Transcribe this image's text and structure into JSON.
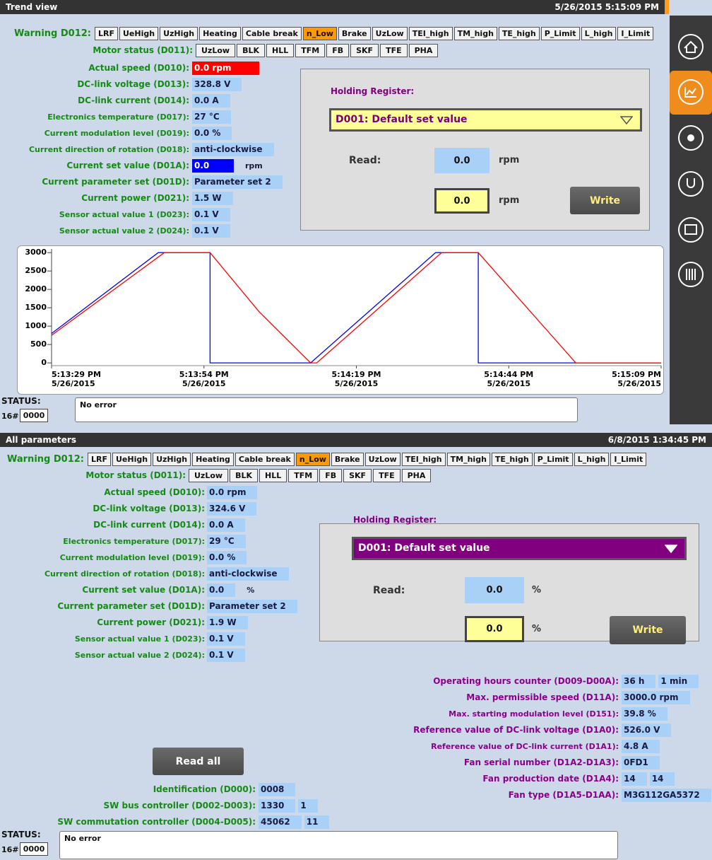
{
  "top": {
    "title": "Trend view",
    "datetime": "5/26/2015 5:15:09 PM",
    "warning": {
      "label": "Warning D012:",
      "flags": [
        "LRF",
        "UeHigh",
        "UzHigh",
        "Heating",
        "Cable break",
        "n_Low",
        "Brake",
        "UzLow",
        "TEI_high",
        "TM_high",
        "TE_high",
        "P_Limit",
        "L_high",
        "I_Limit"
      ],
      "highlight": 5
    },
    "motor_status": {
      "label": "Motor status (D011):",
      "flags": [
        "UzLow",
        "BLK",
        "HLL",
        "TFM",
        "FB",
        "SKF",
        "TFE",
        "PHA"
      ]
    },
    "params": [
      {
        "label": "Actual speed (D010):",
        "value": "0.0 rpm",
        "color": "#ff0000"
      },
      {
        "label": "DC-link voltage (D013):",
        "value": "328.8 V"
      },
      {
        "label": "DC-link current (D014):",
        "value": "0.0 A"
      },
      {
        "label": "Electronics temperature (D017):",
        "value": "27 °C"
      },
      {
        "label": "Current modulation level (D019):",
        "value": "0.0 %"
      },
      {
        "label": "Current direction of rotation (D018):",
        "value": "anti-clockwise"
      },
      {
        "label": "Current set value (D01A):",
        "value": "0.0",
        "unit": "rpm",
        "color": "#0000ff"
      },
      {
        "label": "Current parameter set (D01D):",
        "value": "Parameter set 2"
      },
      {
        "label": "Current power (D021):",
        "value": "1.5 W"
      },
      {
        "label": "Sensor actual value 1 (D023):",
        "value": "0.1 V"
      },
      {
        "label": "Sensor actual value 2 (D024):",
        "value": "0.1 V"
      }
    ],
    "holding": {
      "title": "Holding Register:",
      "selected": "D001: Default set value",
      "dropdown_color": "#ffff99",
      "dropdown_text_color": "#7a007a",
      "read_label": "Read:",
      "read_value": "0.0",
      "read_unit": "rpm",
      "write_value": "0.0",
      "write_unit": "rpm",
      "write_button": "Write"
    },
    "trend": {
      "xlim": [
        0,
        100
      ],
      "ylim": [
        -75,
        3100
      ],
      "yticks": [
        0,
        500,
        1000,
        1500,
        2000,
        2500,
        3000
      ],
      "xticks": [
        {
          "value": 0,
          "time": "5:13:29 PM",
          "date": "5/26/2015"
        },
        {
          "value": 25,
          "time": "5:13:54 PM",
          "date": "5/26/2015"
        },
        {
          "value": 50,
          "time": "5:14:19 PM",
          "date": "5/26/2015"
        },
        {
          "value": 75,
          "time": "5:14:44 PM",
          "date": "5/26/2015"
        },
        {
          "value": 100,
          "time": "5:15:09 PM",
          "date": "5/26/2015"
        }
      ],
      "series": [
        {
          "color": "#0000ff",
          "x": [
            0,
            17.5,
            26,
            26,
            42.5,
            63,
            70,
            70,
            100
          ],
          "values": [
            800,
            3000,
            3000,
            0,
            0,
            3000,
            3000,
            0,
            0
          ]
        },
        {
          "color": "#ff0000",
          "x": [
            0,
            18.5,
            26,
            34,
            42.5,
            43.5,
            64,
            70,
            78,
            86,
            100
          ],
          "values": [
            750,
            3000,
            3000,
            1400,
            0,
            0,
            3000,
            3000,
            1500,
            0,
            0
          ]
        }
      ]
    },
    "status": {
      "label": "STATUS:",
      "prefix": "16#",
      "code": "0000",
      "message": "No error"
    }
  },
  "bottom": {
    "title": "All parameters",
    "datetime": "6/8/2015 1:34:45 PM",
    "warning": {
      "label": "Warning D012:",
      "flags": [
        "LRF",
        "UeHigh",
        "UzHigh",
        "Heating",
        "Cable break",
        "n_Low",
        "Brake",
        "UzLow",
        "TEI_high",
        "TM_high",
        "TE_high",
        "P_Limit",
        "L_high",
        "I_Limit"
      ],
      "highlight": 5
    },
    "motor_status": {
      "label": "Motor status (D011):",
      "flags": [
        "UzLow",
        "BLK",
        "HLL",
        "TFM",
        "FB",
        "SKF",
        "TFE",
        "PHA"
      ]
    },
    "params": [
      {
        "label": "Actual speed (D010):",
        "value": "0.0 rpm"
      },
      {
        "label": "DC-link voltage (D013):",
        "value": "324.6 V"
      },
      {
        "label": "DC-link current (D014):",
        "value": "0.0 A"
      },
      {
        "label": "Electronics temperature (D017):",
        "value": "29 °C"
      },
      {
        "label": "Current modulation level (D019):",
        "value": "0.0 %"
      },
      {
        "label": "Current direction of rotation (D018):",
        "value": "anti-clockwise"
      },
      {
        "label": "Current set value (D01A):",
        "value": "0.0",
        "unit": "%"
      },
      {
        "label": "Current parameter set (D01D):",
        "value": "Parameter set 2"
      },
      {
        "label": "Current power (D021):",
        "value": "1.9 W"
      },
      {
        "label": "Sensor actual value 1 (D023):",
        "value": "0.1 V"
      },
      {
        "label": "Sensor actual value 2 (D024):",
        "value": "0.1 V"
      }
    ],
    "holding": {
      "title": "Holding Register:",
      "selected": "D001: Default set value",
      "dropdown_color": "#800080",
      "dropdown_text_color": "#ffffff",
      "read_label": "Read:",
      "read_value": "0.0",
      "read_unit": "%",
      "write_value": "0.0",
      "write_unit": "%",
      "write_button": "Write"
    },
    "details": [
      {
        "label": "Operating hours counter (D009-D00A):",
        "values": [
          "36 h",
          "1 min"
        ]
      },
      {
        "label": "Max. permissible speed (D11A):",
        "values": [
          "3000.0 rpm"
        ]
      },
      {
        "label": "Max. starting modulation level (D151):",
        "values": [
          "39.8 %"
        ]
      },
      {
        "label": "Reference value of DC-link voltage (D1A0):",
        "values": [
          "526.0 V"
        ]
      },
      {
        "label": "Reference value of DC-link current (D1A1):",
        "values": [
          "4.8 A"
        ]
      },
      {
        "label": "Fan serial number (D1A2-D1A3):",
        "values": [
          "0FD1"
        ]
      },
      {
        "label": "Fan production date (D1A4):",
        "values": [
          "14",
          "14"
        ]
      },
      {
        "label": "Fan type (D1A5-D1AA):",
        "values": [
          "M3G112GA5372"
        ]
      }
    ],
    "read_all": "Read all",
    "ids": [
      {
        "label": "Identification (D000):",
        "values": [
          "0008"
        ]
      },
      {
        "label": "SW bus controller (D002-D003):",
        "values": [
          "1330",
          "1"
        ]
      },
      {
        "label": "SW commutation controller (D004-D005):",
        "values": [
          "45062",
          "11"
        ]
      }
    ],
    "status": {
      "label": "STATUS:",
      "prefix": "16#",
      "code": "0000",
      "message": "No error"
    }
  }
}
